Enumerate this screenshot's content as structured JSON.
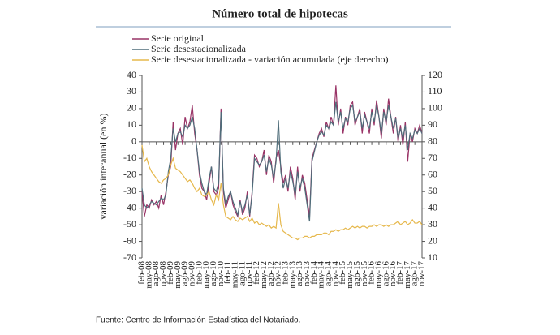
{
  "chart_data": {
    "type": "line",
    "title": "Número total de hipotecas",
    "y_label": "variación interanual (en %)",
    "source": "Fuente: Centro de Información Estadística del Notariado.",
    "categories": [
      "feb-08",
      null,
      null,
      "may-08",
      null,
      null,
      "ago-08",
      null,
      null,
      "nov-08",
      null,
      null,
      "feb-09",
      null,
      null,
      "may-09",
      null,
      null,
      "ago-09",
      null,
      null,
      "nov-09",
      null,
      null,
      "feb-10",
      null,
      null,
      "may-10",
      null,
      null,
      "ago-10",
      null,
      null,
      "nov-10",
      null,
      null,
      "feb-11",
      null,
      null,
      "may-11",
      null,
      null,
      "ago-11",
      null,
      null,
      "nov-11",
      null,
      null,
      "feb-12",
      null,
      null,
      "may-12",
      null,
      null,
      "ago-12",
      null,
      null,
      "nov-12",
      null,
      null,
      "feb-13",
      null,
      null,
      "may-13",
      null,
      null,
      "ago-13",
      null,
      null,
      "nov-13",
      null,
      null,
      "feb-14",
      null,
      null,
      "may-14",
      null,
      null,
      "ago-14",
      null,
      null,
      "nov-14",
      null,
      null,
      "feb-15",
      null,
      null,
      "may-15",
      null,
      null,
      "ago-15",
      null,
      null,
      "nov-15",
      null,
      null,
      "feb-16",
      null,
      null,
      "may-16",
      null,
      null,
      "ago-16",
      null,
      null,
      "nov-16",
      null,
      null,
      "feb-17",
      null,
      null,
      "may-17",
      null,
      null,
      "ago-17",
      null,
      null,
      "nov-17"
    ],
    "series": [
      {
        "name": "Serie original",
        "color": "#993366",
        "values": [
          -30,
          -45,
          -38,
          -40,
          -35,
          -38,
          -36,
          -40,
          -32,
          -38,
          -30,
          -20,
          -15,
          12,
          -5,
          5,
          8,
          -2,
          15,
          8,
          12,
          22,
          5,
          -5,
          -20,
          -28,
          -30,
          -35,
          -25,
          -15,
          -30,
          -32,
          -28,
          20,
          -30,
          -40,
          -35,
          -30,
          -38,
          -42,
          -45,
          -35,
          -44,
          -40,
          -30,
          -45,
          -30,
          -8,
          -10,
          -15,
          -12,
          -5,
          -20,
          -8,
          -12,
          -25,
          -10,
          -5,
          -15,
          -25,
          -20,
          -30,
          -15,
          -22,
          -35,
          -15,
          -30,
          -20,
          -25,
          -35,
          -45,
          -10,
          -5,
          0,
          5,
          8,
          3,
          12,
          8,
          15,
          10,
          34,
          10,
          20,
          5,
          15,
          10,
          22,
          24,
          10,
          15,
          20,
          5,
          18,
          12,
          5,
          20,
          10,
          25,
          15,
          2,
          20,
          10,
          26,
          15,
          5,
          15,
          0,
          10,
          -2,
          12,
          -12,
          5,
          0,
          8,
          5,
          10,
          5
        ]
      },
      {
        "name": "Serie desestacionalizada",
        "color": "#4f6d7a",
        "values": [
          -28,
          -38,
          -40,
          -38,
          -36,
          -37,
          -38,
          -36,
          -34,
          -35,
          -32,
          -18,
          -10,
          8,
          0,
          5,
          6,
          3,
          10,
          8,
          10,
          15,
          8,
          -5,
          -18,
          -25,
          -30,
          -32,
          -22,
          -15,
          -28,
          -30,
          -25,
          18,
          -28,
          -38,
          -33,
          -30,
          -36,
          -40,
          -44,
          -36,
          -42,
          -38,
          -32,
          -44,
          -32,
          -10,
          -12,
          -14,
          -12,
          -8,
          -18,
          -10,
          -14,
          -22,
          -12,
          13,
          -18,
          -28,
          -22,
          -28,
          -18,
          -24,
          -32,
          -18,
          -28,
          -22,
          -28,
          -38,
          -48,
          -12,
          -6,
          0,
          4,
          6,
          4,
          10,
          8,
          12,
          10,
          24,
          12,
          18,
          8,
          14,
          12,
          20,
          22,
          12,
          15,
          18,
          8,
          16,
          12,
          8,
          18,
          12,
          22,
          15,
          5,
          18,
          12,
          22,
          15,
          8,
          14,
          2,
          8,
          2,
          10,
          -5,
          5,
          2,
          7,
          5,
          8,
          5
        ]
      },
      {
        "name": "Serie desestacionalizada - variación acumulada (eje derecho)",
        "color": "#e6b84c",
        "axis": "y2",
        "values": [
          78,
          68,
          70,
          65,
          62,
          60,
          58,
          56,
          55,
          57,
          58,
          60,
          66,
          70,
          64,
          63,
          62,
          60,
          58,
          56,
          57,
          55,
          52,
          50,
          52,
          48,
          47,
          48,
          50,
          45,
          42,
          48,
          45,
          55,
          42,
          35,
          34,
          33,
          35,
          33,
          32,
          34,
          33,
          34,
          35,
          32,
          34,
          31,
          32,
          30,
          31,
          30,
          29,
          30,
          28,
          29,
          28,
          43,
          30,
          26,
          25,
          24,
          23,
          22,
          22,
          21,
          22,
          22,
          23,
          23,
          22,
          23,
          23,
          24,
          24,
          24,
          25,
          25,
          24,
          26,
          26,
          27,
          26,
          27,
          27,
          28,
          27,
          28,
          29,
          28,
          29,
          28,
          29,
          29,
          28,
          29,
          29,
          30,
          29,
          30,
          30,
          29,
          30,
          29,
          30,
          30,
          31,
          32,
          30,
          31,
          32,
          30,
          31,
          33,
          31,
          31,
          32,
          30
        ]
      }
    ],
    "ylim": [
      -70,
      40
    ],
    "yticks": [
      40,
      30,
      20,
      10,
      0,
      -10,
      -20,
      -30,
      -40,
      -50,
      -60,
      -70
    ],
    "y2lim": [
      10,
      120
    ],
    "y2ticks": [
      120,
      110,
      100,
      90,
      80,
      70,
      60,
      50,
      40,
      30,
      20,
      10
    ]
  }
}
